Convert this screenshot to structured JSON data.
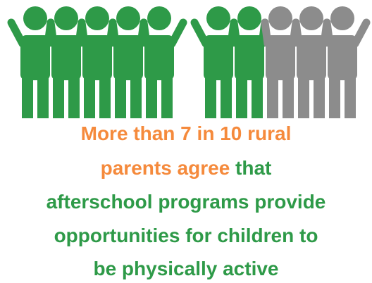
{
  "icons": {
    "filled": 7,
    "total": 10,
    "filled_color": "#2e9a48",
    "empty_color": "#8c8c8c"
  },
  "headline": {
    "lines": [
      [
        {
          "text": "More than 7 in 10 rural",
          "color": "#f58a3c"
        }
      ],
      [
        {
          "text": "parents agree",
          "color": "#f58a3c"
        },
        {
          "text": " that",
          "color": "#2e9a48"
        }
      ],
      [
        {
          "text": "afterschool programs provide",
          "color": "#2e9a48"
        }
      ],
      [
        {
          "text": "opportunities for children to",
          "color": "#2e9a48"
        }
      ],
      [
        {
          "text": "be physically active",
          "color": "#2e9a48"
        }
      ]
    ]
  }
}
